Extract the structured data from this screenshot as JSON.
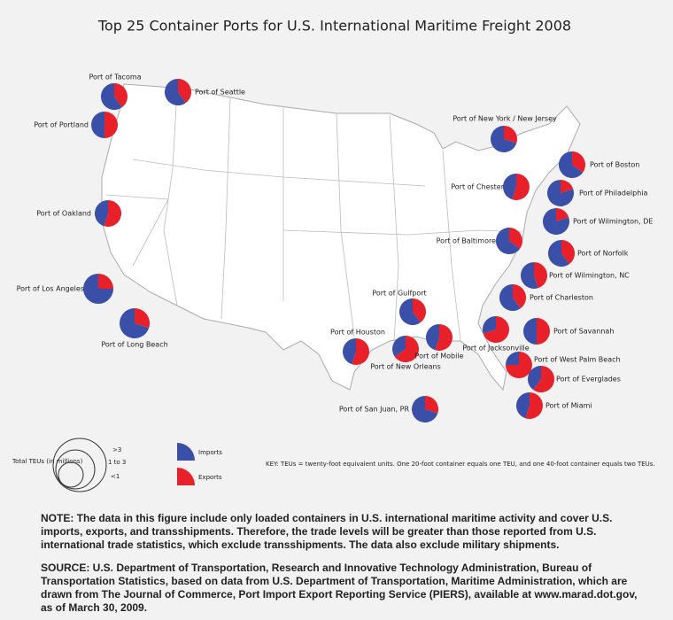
{
  "title": "Top 25 Container Ports for U.S. International Maritime Freight 2008",
  "ports": [
    {
      "name": "Port of Tacoma",
      "imports": 60,
      "exports": 40,
      "teu_class": "1 to 3"
    },
    {
      "name": "Port of Seattle",
      "imports": 60,
      "exports": 40,
      "teu_class": "1 to 3"
    },
    {
      "name": "Port of Portland",
      "imports": 50,
      "exports": 50,
      "teu_class": "1 to 3"
    },
    {
      "name": "Port of Oakland",
      "imports": 45,
      "exports": 55,
      "teu_class": "1 to 3"
    },
    {
      "name": "Port of Los Angeles",
      "imports": 75,
      "exports": 25,
      "teu_class": ">3"
    },
    {
      "name": "Port of Long Beach",
      "imports": 70,
      "exports": 30,
      "teu_class": ">3"
    },
    {
      "name": "Port of  New York / New Jersey",
      "imports": 70,
      "exports": 30,
      "teu_class": "1 to 3"
    },
    {
      "name": "Port of Boston",
      "imports": 65,
      "exports": 35,
      "teu_class": "1 to 3"
    },
    {
      "name": "Port of Chester",
      "imports": 45,
      "exports": 55,
      "teu_class": "1 to 3"
    },
    {
      "name": "Port of Philadelphia",
      "imports": 80,
      "exports": 20,
      "teu_class": "1 to 3"
    },
    {
      "name": "Port of Wilmington, DE",
      "imports": 80,
      "exports": 20,
      "teu_class": "1 to 3"
    },
    {
      "name": "Port of Baltimore",
      "imports": 65,
      "exports": 35,
      "teu_class": "1 to 3"
    },
    {
      "name": "Port of Norfolk",
      "imports": 60,
      "exports": 40,
      "teu_class": "1 to 3"
    },
    {
      "name": "Port of Wilmington, NC",
      "imports": 55,
      "exports": 45,
      "teu_class": "1 to 3"
    },
    {
      "name": "Port of Charleston",
      "imports": 60,
      "exports": 40,
      "teu_class": "1 to 3"
    },
    {
      "name": "Port of Gulfport",
      "imports": 60,
      "exports": 40,
      "teu_class": "1 to 3"
    },
    {
      "name": "Port of Houston",
      "imports": 45,
      "exports": 55,
      "teu_class": "1 to 3"
    },
    {
      "name": "Port of New Orleans",
      "imports": 35,
      "exports": 65,
      "teu_class": "1 to 3"
    },
    {
      "name": "Port of Mobile",
      "imports": 45,
      "exports": 55,
      "teu_class": "1 to 3"
    },
    {
      "name": "Port of Jacksonville",
      "imports": 30,
      "exports": 70,
      "teu_class": "1 to 3"
    },
    {
      "name": "Port of Savannah",
      "imports": 50,
      "exports": 50,
      "teu_class": "1 to 3"
    },
    {
      "name": "Port of West Palm Beach",
      "imports": 25,
      "exports": 75,
      "teu_class": "1 to 3"
    },
    {
      "name": "Port of Everglades",
      "imports": 40,
      "exports": 60,
      "teu_class": "1 to 3"
    },
    {
      "name": "Port of Miami",
      "imports": 45,
      "exports": 55,
      "teu_class": "1 to 3"
    },
    {
      "name": "Port of San Juan, PR",
      "imports": 70,
      "exports": 30,
      "teu_class": "1 to 3"
    }
  ],
  "legend": {
    "size_title": "Total TEUs (in millions)",
    "sizes": [
      ">3",
      "1 to 3",
      "<1"
    ],
    "imports": "Imports",
    "exports": "Exports",
    "key": "KEY: TEUs = twenty-foot equivalent units. One 20-foot container equals one TEU, and one 40-foot container equals two TEUs."
  },
  "note": "NOTE: The data in this figure include only loaded containers in U.S. international maritime activity and cover U.S. imports, exports, and transshipments. Therefore, the trade levels will be greater than those reported from U.S. international trade statistics, which exclude transshipments. The data also exclude military shipments.",
  "source": "SOURCE: U.S. Department of Transportation, Research and Innovative Technology Administration, Bureau of Transportation Statistics, based on data from U.S. Department of Transportation, Maritime Administration, which are drawn from The Journal of Commerce, Port Import Export Reporting Service (PIERS), available at www.marad.dot.gov, as of March 30, 2009."
}
